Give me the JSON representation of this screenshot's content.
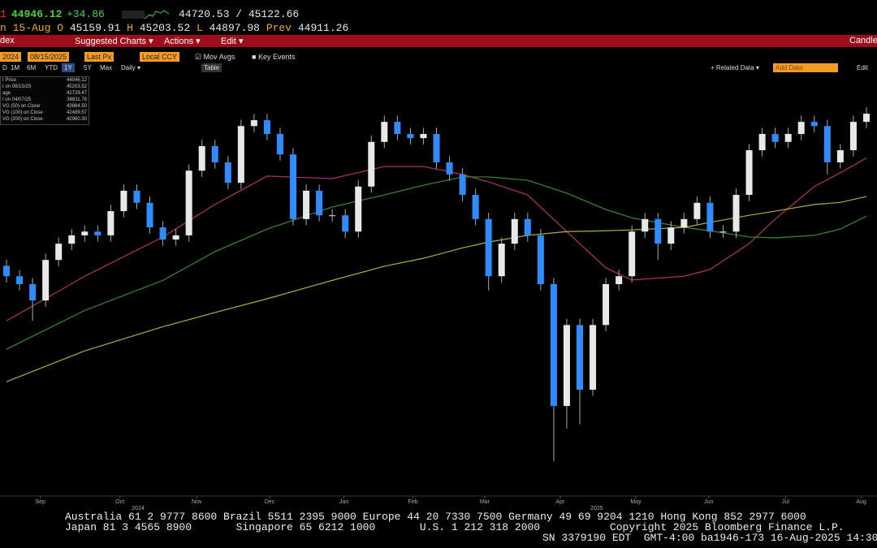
{
  "header": {
    "prefix": "1",
    "last": "44946.12",
    "change": "+34.86",
    "range": "44720.53 / 45122.66",
    "date_label": "n 15-Aug",
    "open_label": "O",
    "open": "45159.91",
    "high_label": "H",
    "high": "45203.52",
    "low_label": "L",
    "low": "44897.98",
    "prev_label": "Prev",
    "prev": "44911.26"
  },
  "toolbar": {
    "left": "dex",
    "menus": [
      "Suggested Charts ▾",
      "Actions ▾",
      "Edit ▾"
    ],
    "right": "Candle"
  },
  "controls": {
    "start": "2024",
    "end": "08/15/2025",
    "field": "Last Px",
    "currency": "Local CCY",
    "mov_avgs": "Mov Avgs",
    "key_events": "Key Events"
  },
  "periods": {
    "items": [
      "D",
      "1M",
      "6M",
      "YTD",
      "1Y",
      "5Y",
      "Max",
      "Daily ▾"
    ],
    "table": "Table",
    "related": "+ Related Data ▾",
    "add_data": "Add Data",
    "edit": "Edit"
  },
  "legend": {
    "rows": [
      [
        "t Price",
        "44946.12"
      ],
      [
        "t on 08/15/25",
        "45203.52"
      ],
      [
        "age",
        "42729.47"
      ],
      [
        "t on 04/07/25",
        "36611.78"
      ],
      [
        "VG (50)  on Close",
        "43884.50"
      ],
      [
        "VG (100)  on Close",
        "42489.57"
      ],
      [
        "VG (200)  on Close",
        "42960.30"
      ]
    ]
  },
  "chart_data": {
    "type": "candlestick",
    "open": [
      41300,
      41050,
      40860,
      40470,
      41440,
      41830,
      42030,
      42120,
      42030,
      42610,
      43100,
      42810,
      42220,
      41930,
      42030,
      43580,
      44170,
      43780,
      43290,
      44650,
      44790,
      44460,
      43970,
      42420,
      43100,
      42510,
      42510,
      42120,
      43200,
      44270,
      44750,
      44460,
      44360,
      44460,
      43780,
      43490,
      43000,
      42420,
      41050,
      41830,
      42420,
      42030,
      40860,
      37940,
      39880,
      38330,
      39880,
      40860,
      41050,
      42120,
      42420,
      41830,
      42220,
      42420,
      42810,
      42120,
      42120,
      43000,
      44070,
      44460,
      44270,
      44460,
      44750,
      44650,
      43780,
      44070,
      44750
    ],
    "high": [
      41450,
      41200,
      41010,
      41590,
      41980,
      42180,
      42270,
      42270,
      42760,
      43250,
      43250,
      42960,
      42370,
      42180,
      43730,
      44320,
      44320,
      43930,
      44800,
      44940,
      44940,
      44610,
      44120,
      43250,
      43250,
      42660,
      42660,
      43350,
      44420,
      44900,
      44900,
      44610,
      44610,
      44610,
      43930,
      43640,
      43150,
      42570,
      41980,
      42570,
      42570,
      42180,
      41010,
      40030,
      40030,
      40030,
      41010,
      41200,
      42270,
      42570,
      42570,
      42370,
      42570,
      42960,
      42960,
      42270,
      43150,
      44220,
      44610,
      44610,
      44610,
      44900,
      44900,
      44800,
      44220,
      44900,
      45100
    ],
    "low": [
      40900,
      40710,
      39980,
      40320,
      41290,
      41680,
      41880,
      41880,
      41880,
      42460,
      42660,
      42070,
      41780,
      41780,
      41880,
      43430,
      43630,
      43140,
      43140,
      44500,
      44310,
      43820,
      42270,
      42270,
      42360,
      42360,
      41970,
      41970,
      43050,
      44120,
      44310,
      44210,
      44210,
      43630,
      43340,
      42850,
      42270,
      40710,
      40900,
      41680,
      41880,
      40710,
      36610,
      37400,
      37500,
      38180,
      39730,
      40710,
      40900,
      41970,
      41440,
      41680,
      42070,
      42270,
      41970,
      41970,
      41970,
      42850,
      43920,
      44120,
      44120,
      44310,
      44500,
      43490,
      43630,
      43920,
      44600
    ],
    "close": [
      41050,
      40860,
      40470,
      41440,
      41830,
      42030,
      42120,
      42030,
      42610,
      43100,
      42810,
      42220,
      41930,
      42030,
      43580,
      44170,
      43780,
      43290,
      44650,
      44790,
      44460,
      43970,
      42420,
      43100,
      42510,
      42510,
      42120,
      43200,
      44270,
      44750,
      44460,
      44360,
      44460,
      43780,
      43490,
      43000,
      42420,
      41050,
      41830,
      42420,
      42030,
      40860,
      37940,
      39880,
      38330,
      39880,
      40860,
      41050,
      42120,
      42420,
      41830,
      42220,
      42420,
      42810,
      42120,
      42120,
      43000,
      44070,
      44460,
      44270,
      44460,
      44750,
      44650,
      43780,
      44070,
      44750,
      44946
    ],
    "up_color": "#e8e8e8",
    "down_color": "#2f8cff",
    "moving_averages": [
      {
        "color": "#b0306a",
        "x": [
          0,
          6,
          12,
          16,
          20,
          25,
          29,
          32,
          35,
          37,
          40,
          43,
          46,
          48,
          52,
          54,
          57,
          59,
          62,
          64,
          66
        ],
        "values": [
          39980,
          41050,
          41990,
          42770,
          43450,
          43390,
          43680,
          43680,
          43490,
          43310,
          43000,
          42120,
          41250,
          40960,
          41050,
          41210,
          41830,
          42420,
          43200,
          43530,
          43884.5
        ]
      },
      {
        "color": "#3a8a30",
        "x": [
          0,
          6,
          12,
          16,
          20,
          25,
          29,
          32,
          35,
          37,
          40,
          43,
          46,
          48,
          52,
          54,
          57,
          59,
          62,
          64,
          66
        ],
        "values": [
          39300,
          40230,
          40950,
          41640,
          42180,
          42710,
          43000,
          43230,
          43430,
          43430,
          43350,
          43040,
          42650,
          42450,
          42220,
          42140,
          41990,
          41970,
          42030,
          42180,
          42489.57
        ]
      },
      {
        "color": "#b8a840",
        "x": [
          0,
          6,
          12,
          16,
          20,
          25,
          29,
          32,
          35,
          37,
          40,
          43,
          46,
          48,
          52,
          54,
          57,
          59,
          62,
          64,
          66
        ],
        "values": [
          38520,
          39260,
          39840,
          40180,
          40510,
          40950,
          41290,
          41480,
          41730,
          41870,
          42030,
          42120,
          42140,
          42160,
          42220,
          42340,
          42510,
          42610,
          42770,
          42820,
          42960.3
        ]
      }
    ],
    "xlim": [
      -0.5,
      66.5
    ],
    "ylim": [
      35800,
      45920
    ],
    "xticks": [
      {
        "value": 2.6,
        "label": "Sep"
      },
      {
        "value": 8.7,
        "label": "Oct"
      },
      {
        "value": 14.6,
        "label": "Nov"
      },
      {
        "value": 20.2,
        "label": "Dec"
      },
      {
        "value": 25.9,
        "label": "Jan"
      },
      {
        "value": 31.2,
        "label": "Feb"
      },
      {
        "value": 36.7,
        "label": "Mar"
      },
      {
        "value": 42.5,
        "label": "Apr"
      },
      {
        "value": 48.3,
        "label": "May"
      },
      {
        "value": 53.9,
        "label": "Jun"
      },
      {
        "value": 59.8,
        "label": "Jul"
      },
      {
        "value": 65.6,
        "label": "Aug"
      }
    ],
    "year_ticks": [
      {
        "value": 10.1,
        "label": "2024"
      },
      {
        "value": 45.3,
        "label": "2025"
      }
    ]
  },
  "footer": {
    "lines": [
      "Australia 61 2 9777 8600 Brazil 5511 2395 9000 Europe 44 20 7330 7500 Germany 49 69 9204 1210 Hong Kong 852 2977 6000",
      "Japan 81 3 4565 8900       Singapore 65 6212 1000       U.S. 1 212 318 2000           Copyright 2025 Bloomberg Finance L.P."
    ],
    "session": "SN 3379190 EDT  GMT-4:00 ba1946-173 16-Aug-2025 14:30"
  }
}
